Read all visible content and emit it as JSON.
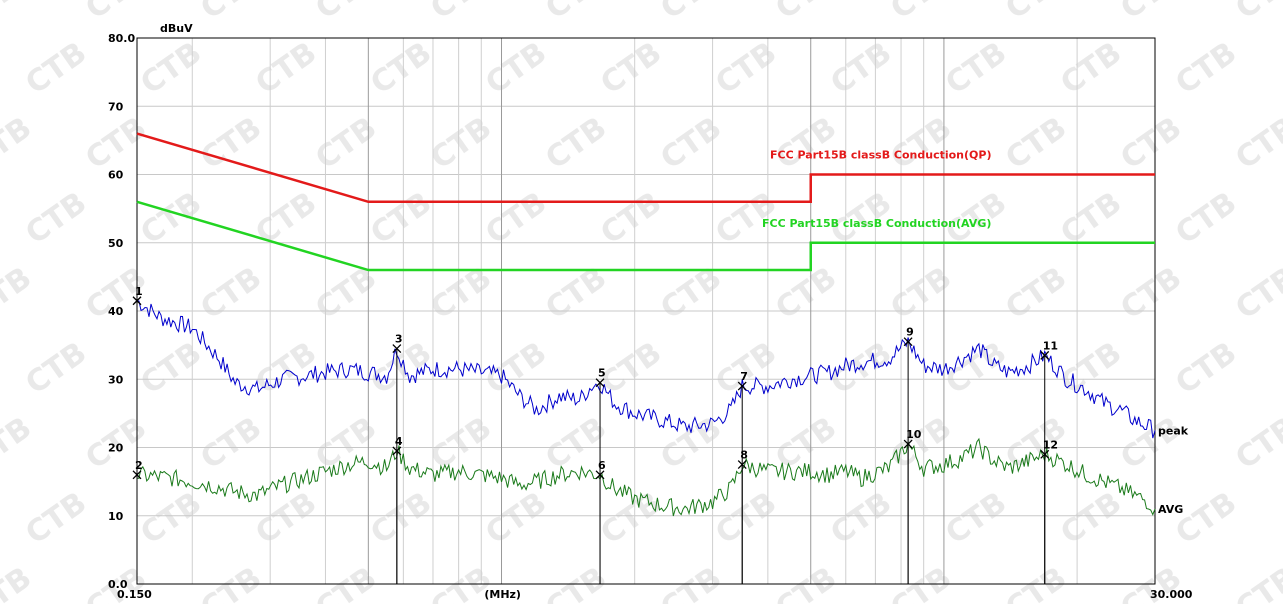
{
  "chart_data": {
    "type": "line",
    "ylabel": "dBuV",
    "xlabel": "(MHz)",
    "x_scale": "log",
    "xlim": [
      0.15,
      30.0
    ],
    "ylim": [
      0,
      80
    ],
    "x_tick_labels": [
      "0.150",
      "(MHz)",
      "30.000"
    ],
    "y_ticks": [
      {
        "value": 0,
        "label": "0.0"
      },
      {
        "value": 10,
        "label": "10"
      },
      {
        "value": 20,
        "label": "20"
      },
      {
        "value": 30,
        "label": "30"
      },
      {
        "value": 40,
        "label": "40"
      },
      {
        "value": 50,
        "label": "50"
      },
      {
        "value": 60,
        "label": "60"
      },
      {
        "value": 70,
        "label": "70"
      },
      {
        "value": 80,
        "label": "80.0"
      }
    ],
    "grid": true,
    "watermark": "CTB",
    "limits": [
      {
        "name": "FCC  Part15B  classB  Conduction(QP)",
        "color": "#e31a1a",
        "points": [
          [
            0.15,
            66
          ],
          [
            0.5,
            56
          ],
          [
            5.0,
            56
          ],
          [
            5.0,
            60
          ],
          [
            30.0,
            60
          ]
        ]
      },
      {
        "name": "FCC  Part15B  classB  Conduction(AVG)",
        "color": "#22d422",
        "points": [
          [
            0.15,
            56
          ],
          [
            0.5,
            46
          ],
          [
            5.0,
            46
          ],
          [
            5.0,
            50
          ],
          [
            30.0,
            50
          ]
        ]
      }
    ],
    "series": [
      {
        "name": "peak",
        "color": "#0000cc",
        "points": [
          [
            0.15,
            41.5
          ],
          [
            0.17,
            39
          ],
          [
            0.2,
            37.5
          ],
          [
            0.23,
            33
          ],
          [
            0.25,
            29.5
          ],
          [
            0.28,
            28.5
          ],
          [
            0.32,
            30
          ],
          [
            0.36,
            30.5
          ],
          [
            0.4,
            31
          ],
          [
            0.45,
            31.5
          ],
          [
            0.5,
            31
          ],
          [
            0.55,
            30.5
          ],
          [
            0.58,
            34.5
          ],
          [
            0.62,
            30.5
          ],
          [
            0.7,
            31.5
          ],
          [
            0.8,
            31.5
          ],
          [
            0.9,
            31
          ],
          [
            1.0,
            30.5
          ],
          [
            1.1,
            27.5
          ],
          [
            1.2,
            25.5
          ],
          [
            1.35,
            27.5
          ],
          [
            1.5,
            27
          ],
          [
            1.6,
            29
          ],
          [
            1.67,
            29.5
          ],
          [
            1.8,
            26.5
          ],
          [
            2.0,
            25
          ],
          [
            2.3,
            24
          ],
          [
            2.6,
            23
          ],
          [
            3.0,
            23.5
          ],
          [
            3.3,
            25.5
          ],
          [
            3.5,
            29
          ],
          [
            4.0,
            29
          ],
          [
            4.5,
            30
          ],
          [
            5.0,
            30.5
          ],
          [
            5.5,
            31
          ],
          [
            6.0,
            32
          ],
          [
            6.5,
            32.5
          ],
          [
            7.5,
            33
          ],
          [
            8.3,
            35.5
          ],
          [
            9.0,
            32
          ],
          [
            10.0,
            31.5
          ],
          [
            11.0,
            33
          ],
          [
            12.0,
            34.5
          ],
          [
            13.0,
            32
          ],
          [
            14.0,
            31
          ],
          [
            15.5,
            32
          ],
          [
            16.9,
            33.5
          ],
          [
            19.0,
            30
          ],
          [
            21.0,
            28.5
          ],
          [
            23.0,
            26.5
          ],
          [
            25.0,
            25.5
          ],
          [
            27.0,
            24
          ],
          [
            29.0,
            23
          ],
          [
            30.0,
            22.5
          ]
        ]
      },
      {
        "name": "AVG",
        "color": "#1a7a1a",
        "points": [
          [
            0.15,
            16
          ],
          [
            0.18,
            15.5
          ],
          [
            0.2,
            15
          ],
          [
            0.22,
            14.5
          ],
          [
            0.25,
            13.5
          ],
          [
            0.28,
            13
          ],
          [
            0.32,
            14.5
          ],
          [
            0.36,
            15.5
          ],
          [
            0.4,
            16.5
          ],
          [
            0.45,
            17.5
          ],
          [
            0.5,
            18
          ],
          [
            0.55,
            17
          ],
          [
            0.58,
            19.5
          ],
          [
            0.62,
            17
          ],
          [
            0.7,
            16
          ],
          [
            0.8,
            16.5
          ],
          [
            0.9,
            16
          ],
          [
            1.0,
            15.5
          ],
          [
            1.1,
            14.5
          ],
          [
            1.2,
            15
          ],
          [
            1.35,
            16
          ],
          [
            1.5,
            16.5
          ],
          [
            1.67,
            16
          ],
          [
            1.8,
            14
          ],
          [
            2.0,
            12.5
          ],
          [
            2.3,
            11.5
          ],
          [
            2.6,
            11
          ],
          [
            3.0,
            12
          ],
          [
            3.3,
            14
          ],
          [
            3.5,
            17.5
          ],
          [
            4.0,
            16.5
          ],
          [
            4.5,
            16.5
          ],
          [
            5.0,
            16.5
          ],
          [
            5.5,
            16
          ],
          [
            6.0,
            16.5
          ],
          [
            6.5,
            15.5
          ],
          [
            7.5,
            17
          ],
          [
            8.3,
            20.5
          ],
          [
            9.0,
            17
          ],
          [
            10.0,
            17.5
          ],
          [
            11.0,
            18.5
          ],
          [
            12.0,
            20
          ],
          [
            13.0,
            18
          ],
          [
            14.0,
            17
          ],
          [
            15.5,
            18
          ],
          [
            16.9,
            19
          ],
          [
            19.0,
            17.5
          ],
          [
            21.0,
            16
          ],
          [
            23.0,
            15
          ],
          [
            25.0,
            14
          ],
          [
            27.0,
            13
          ],
          [
            29.0,
            12
          ],
          [
            30.0,
            11
          ]
        ]
      }
    ],
    "markers": [
      {
        "label": "1",
        "freq": 0.15,
        "level": 41.5
      },
      {
        "label": "2",
        "freq": 0.15,
        "level": 16
      },
      {
        "label": "3",
        "freq": 0.58,
        "level": 34.5
      },
      {
        "label": "4",
        "freq": 0.58,
        "level": 19.5
      },
      {
        "label": "5",
        "freq": 1.67,
        "level": 29.5
      },
      {
        "label": "6",
        "freq": 1.67,
        "level": 16
      },
      {
        "label": "7",
        "freq": 3.5,
        "level": 29
      },
      {
        "label": "8",
        "freq": 3.5,
        "level": 17.5
      },
      {
        "label": "9",
        "freq": 8.3,
        "level": 35.5
      },
      {
        "label": "10",
        "freq": 8.3,
        "level": 20.5
      },
      {
        "label": "11",
        "freq": 16.9,
        "level": 33.5
      },
      {
        "label": "12",
        "freq": 16.9,
        "level": 19
      }
    ]
  }
}
